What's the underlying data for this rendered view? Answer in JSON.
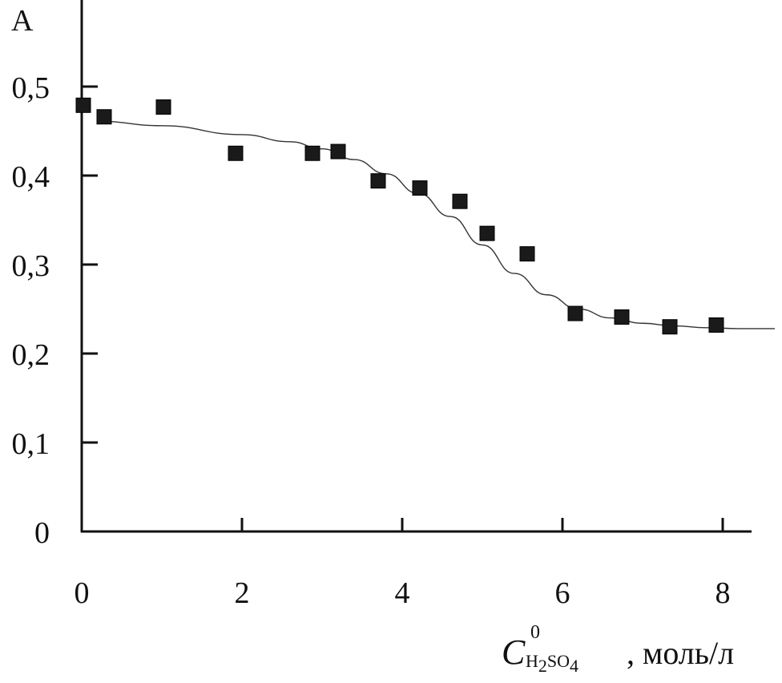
{
  "chart_data": {
    "type": "scatter",
    "ylabel": "A",
    "xlabel": {
      "symbol": "C",
      "superscript": "0",
      "subscript_parts": [
        {
          "text": "H",
          "sub": false
        },
        {
          "text": "2",
          "sub": true
        },
        {
          "text": "SO",
          "sub": false
        },
        {
          "text": "4",
          "sub": true
        }
      ],
      "unit": ", моль/л"
    },
    "xlim": [
      0,
      8.6
    ],
    "ylim": [
      0,
      0.56
    ],
    "x_ticks": [
      0,
      2,
      4,
      6,
      8
    ],
    "x_tick_labels": [
      "0",
      "2",
      "4",
      "6",
      "8"
    ],
    "y_ticks": [
      0,
      0.1,
      0.2,
      0.3,
      0.4,
      0.5
    ],
    "y_tick_labels": [
      "0",
      "0,1",
      "0,2",
      "0,3",
      "0,4",
      "0,5"
    ],
    "grid": false,
    "series": [
      {
        "kind": "points",
        "marker": "square",
        "color": "#1a1a1a",
        "x": [
          0.02,
          0.28,
          1.02,
          1.92,
          2.88,
          3.2,
          3.7,
          4.22,
          4.72,
          5.06,
          5.56,
          6.16,
          6.74,
          7.34,
          7.92
        ],
        "y": [
          0.479,
          0.466,
          0.477,
          0.425,
          0.425,
          0.427,
          0.394,
          0.386,
          0.371,
          0.335,
          0.312,
          0.245,
          0.241,
          0.23,
          0.232
        ]
      },
      {
        "kind": "fit-curve",
        "color": "#333333",
        "x": [
          0.2,
          1.0,
          2.0,
          2.6,
          3.0,
          3.4,
          3.8,
          4.2,
          4.6,
          5.0,
          5.4,
          5.8,
          6.2,
          6.6,
          7.0,
          7.4,
          7.8,
          8.2,
          8.65
        ],
        "y": [
          0.461,
          0.456,
          0.446,
          0.438,
          0.43,
          0.418,
          0.402,
          0.38,
          0.354,
          0.322,
          0.29,
          0.266,
          0.25,
          0.24,
          0.234,
          0.231,
          0.229,
          0.228,
          0.228
        ]
      }
    ]
  }
}
